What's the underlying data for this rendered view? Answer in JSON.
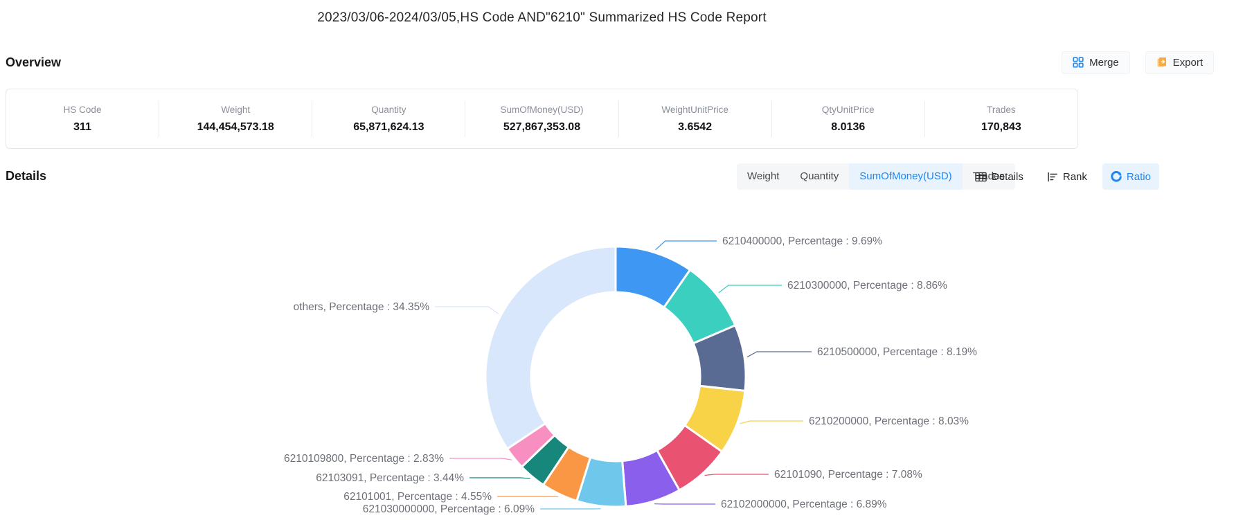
{
  "title": "2023/03/06-2024/03/05,HS Code AND\"6210\" Summarized HS Code Report",
  "overview": {
    "heading": "Overview",
    "merge_label": "Merge",
    "export_label": "Export",
    "stats": [
      {
        "label": "HS Code",
        "value": "311"
      },
      {
        "label": "Weight",
        "value": "144,454,573.18"
      },
      {
        "label": "Quantity",
        "value": "65,871,624.13"
      },
      {
        "label": "SumOfMoney(USD)",
        "value": "527,867,353.08"
      },
      {
        "label": "WeightUnitPrice",
        "value": "3.6542"
      },
      {
        "label": "QtyUnitPrice",
        "value": "8.0136"
      },
      {
        "label": "Trades",
        "value": "170,843"
      }
    ]
  },
  "details": {
    "heading": "Details",
    "tabs": [
      {
        "label": "Weight",
        "selected": false
      },
      {
        "label": "Quantity",
        "selected": false
      },
      {
        "label": "SumOfMoney(USD)",
        "selected": true
      },
      {
        "label": "Trades",
        "selected": false
      }
    ],
    "view_buttons": [
      {
        "label": "Details",
        "icon": "table-icon",
        "selected": false
      },
      {
        "label": "Rank",
        "icon": "rank-list-icon",
        "selected": false
      },
      {
        "label": "Ratio",
        "icon": "ratio-circle-icon",
        "selected": true
      }
    ]
  },
  "icons": {
    "merge": "merge-grid-icon",
    "export": "export-file-icon"
  },
  "colors": {
    "accent_blue": "#2086F0",
    "tab_selected_bg": "#E8F3FD",
    "export_orange": "#F7A942",
    "label_gray": "#6E7079"
  },
  "chart_data": {
    "type": "pie",
    "subtype": "donut",
    "title": "",
    "unit": "percent",
    "legend_position": "none",
    "total": 100,
    "series": [
      {
        "name": "6210400000",
        "value": 9.69,
        "color": "#3E97F2",
        "label": "6210400000,   Percentage : 9.69%"
      },
      {
        "name": "6210300000",
        "value": 8.86,
        "color": "#3BCFBF",
        "label": "6210300000,   Percentage : 8.86%"
      },
      {
        "name": "6210500000",
        "value": 8.19,
        "color": "#5A6B93",
        "label": "6210500000,   Percentage : 8.19%"
      },
      {
        "name": "6210200000",
        "value": 8.03,
        "color": "#F8D247",
        "label": "6210200000,   Percentage : 8.03%"
      },
      {
        "name": "62101090",
        "value": 7.08,
        "color": "#E95270",
        "label": "62101090,   Percentage : 7.08%"
      },
      {
        "name": "62102000000",
        "value": 6.89,
        "color": "#8A5FEC",
        "label": "62102000000,   Percentage : 6.89%"
      },
      {
        "name": "621030000000",
        "value": 6.09,
        "color": "#6FC8EC",
        "label": "621030000000,   Percentage : 6.09%"
      },
      {
        "name": "62101001",
        "value": 4.55,
        "color": "#FA9744",
        "label": "62101001,   Percentage : 4.55%"
      },
      {
        "name": "62103091",
        "value": 3.44,
        "color": "#17877C",
        "label": "62103091,   Percentage : 3.44%"
      },
      {
        "name": "6210109800",
        "value": 2.83,
        "color": "#F78FC0",
        "label": "6210109800,   Percentage : 2.83%"
      },
      {
        "name": "others",
        "value": 34.35,
        "color": "#D8E7FB",
        "label": "others,   Percentage : 34.35%"
      }
    ]
  }
}
